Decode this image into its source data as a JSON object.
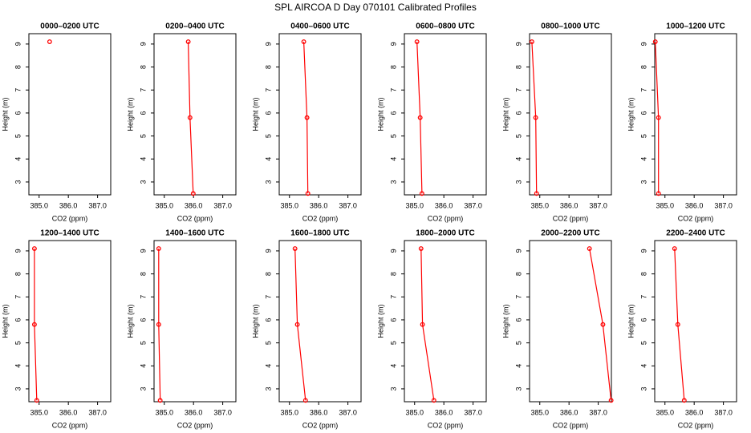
{
  "title": "SPL AIRCOA D  Day 070101  Calibrated Profiles",
  "chart_data": [
    {
      "type": "line",
      "title": "0000–0200 UTC",
      "xlabel": "CO2 (ppm)",
      "ylabel": "Height (m)",
      "color": "#ff0000",
      "xlim": [
        384.65,
        387.45
      ],
      "ylim": [
        2.44,
        9.45
      ],
      "xticks": [
        {
          "value": 385,
          "label": "385.0"
        },
        {
          "value": 386,
          "label": "386.0"
        },
        {
          "value": 387,
          "label": "387.0"
        }
      ],
      "yticks": [
        3,
        4,
        5,
        6,
        7,
        8,
        9
      ],
      "x": [
        385.36
      ],
      "values": [
        9.1
      ]
    },
    {
      "type": "line",
      "title": "0200–0400 UTC",
      "xlabel": "CO2 (ppm)",
      "ylabel": "Height (m)",
      "color": "#ff0000",
      "xlim": [
        384.65,
        387.45
      ],
      "ylim": [
        2.44,
        9.45
      ],
      "xticks": [
        {
          "value": 385,
          "label": "385.0"
        },
        {
          "value": 386,
          "label": "386.0"
        },
        {
          "value": 387,
          "label": "387.0"
        }
      ],
      "yticks": [
        3,
        4,
        5,
        6,
        7,
        8,
        9
      ],
      "x": [
        385.82,
        385.88,
        385.99
      ],
      "values": [
        9.1,
        5.8,
        2.5
      ]
    },
    {
      "type": "line",
      "title": "0400–0600 UTC",
      "xlabel": "CO2 (ppm)",
      "ylabel": "Height (m)",
      "color": "#ff0000",
      "xlim": [
        384.65,
        387.45
      ],
      "ylim": [
        2.44,
        9.45
      ],
      "xticks": [
        {
          "value": 385,
          "label": "385.0"
        },
        {
          "value": 386,
          "label": "386.0"
        },
        {
          "value": 387,
          "label": "387.0"
        }
      ],
      "yticks": [
        3,
        4,
        5,
        6,
        7,
        8,
        9
      ],
      "x": [
        385.49,
        385.6,
        385.63
      ],
      "values": [
        9.1,
        5.8,
        2.5
      ]
    },
    {
      "type": "line",
      "title": "0600–0800 UTC",
      "xlabel": "CO2 (ppm)",
      "ylabel": "Height (m)",
      "color": "#ff0000",
      "xlim": [
        384.65,
        387.45
      ],
      "ylim": [
        2.44,
        9.45
      ],
      "xticks": [
        {
          "value": 385,
          "label": "385.0"
        },
        {
          "value": 386,
          "label": "386.0"
        },
        {
          "value": 387,
          "label": "387.0"
        }
      ],
      "yticks": [
        3,
        4,
        5,
        6,
        7,
        8,
        9
      ],
      "x": [
        385.08,
        385.19,
        385.25
      ],
      "values": [
        9.1,
        5.8,
        2.5
      ]
    },
    {
      "type": "line",
      "title": "0800–1000 UTC",
      "xlabel": "CO2 (ppm)",
      "ylabel": "Height (m)",
      "color": "#ff0000",
      "xlim": [
        384.65,
        387.45
      ],
      "ylim": [
        2.44,
        9.45
      ],
      "xticks": [
        {
          "value": 385,
          "label": "385.0"
        },
        {
          "value": 386,
          "label": "386.0"
        },
        {
          "value": 387,
          "label": "387.0"
        }
      ],
      "yticks": [
        3,
        4,
        5,
        6,
        7,
        8,
        9
      ],
      "x": [
        384.73,
        384.86,
        384.89
      ],
      "values": [
        9.1,
        5.8,
        2.5
      ]
    },
    {
      "type": "line",
      "title": "1000–1200 UTC",
      "xlabel": "CO2 (ppm)",
      "ylabel": "Height (m)",
      "color": "#ff0000",
      "xlim": [
        384.65,
        387.45
      ],
      "ylim": [
        2.44,
        9.45
      ],
      "xticks": [
        {
          "value": 385,
          "label": "385.0"
        },
        {
          "value": 386,
          "label": "386.0"
        },
        {
          "value": 387,
          "label": "387.0"
        }
      ],
      "yticks": [
        3,
        4,
        5,
        6,
        7,
        8,
        9
      ],
      "x": [
        384.67,
        384.78,
        384.78
      ],
      "values": [
        9.1,
        5.8,
        2.5
      ]
    },
    {
      "type": "line",
      "title": "1200–1400 UTC",
      "xlabel": "CO2 (ppm)",
      "ylabel": "Height (m)",
      "color": "#ff0000",
      "xlim": [
        384.65,
        387.45
      ],
      "ylim": [
        2.44,
        9.45
      ],
      "xticks": [
        {
          "value": 385,
          "label": "385.0"
        },
        {
          "value": 386,
          "label": "386.0"
        },
        {
          "value": 387,
          "label": "387.0"
        }
      ],
      "yticks": [
        3,
        4,
        5,
        6,
        7,
        8,
        9
      ],
      "x": [
        384.84,
        384.84,
        384.92
      ],
      "values": [
        9.1,
        5.8,
        2.5
      ]
    },
    {
      "type": "line",
      "title": "1400–1600 UTC",
      "xlabel": "CO2 (ppm)",
      "ylabel": "Height (m)",
      "color": "#ff0000",
      "xlim": [
        384.65,
        387.45
      ],
      "ylim": [
        2.44,
        9.45
      ],
      "xticks": [
        {
          "value": 385,
          "label": "385.0"
        },
        {
          "value": 386,
          "label": "386.0"
        },
        {
          "value": 387,
          "label": "387.0"
        }
      ],
      "yticks": [
        3,
        4,
        5,
        6,
        7,
        8,
        9
      ],
      "x": [
        384.81,
        384.81,
        384.86
      ],
      "values": [
        9.1,
        5.8,
        2.5
      ]
    },
    {
      "type": "line",
      "title": "1600–1800 UTC",
      "xlabel": "CO2 (ppm)",
      "ylabel": "Height (m)",
      "color": "#ff0000",
      "xlim": [
        384.65,
        387.45
      ],
      "ylim": [
        2.44,
        9.45
      ],
      "xticks": [
        {
          "value": 385,
          "label": "385.0"
        },
        {
          "value": 386,
          "label": "386.0"
        },
        {
          "value": 387,
          "label": "387.0"
        }
      ],
      "yticks": [
        3,
        4,
        5,
        6,
        7,
        8,
        9
      ],
      "x": [
        385.19,
        385.27,
        385.55
      ],
      "values": [
        9.1,
        5.8,
        2.5
      ]
    },
    {
      "type": "line",
      "title": "1800–2000 UTC",
      "xlabel": "CO2 (ppm)",
      "ylabel": "Height (m)",
      "color": "#ff0000",
      "xlim": [
        384.65,
        387.45
      ],
      "ylim": [
        2.44,
        9.45
      ],
      "xticks": [
        {
          "value": 385,
          "label": "385.0"
        },
        {
          "value": 386,
          "label": "386.0"
        },
        {
          "value": 387,
          "label": "387.0"
        }
      ],
      "yticks": [
        3,
        4,
        5,
        6,
        7,
        8,
        9
      ],
      "x": [
        385.22,
        385.27,
        385.66
      ],
      "values": [
        9.1,
        5.8,
        2.5
      ]
    },
    {
      "type": "line",
      "title": "2000–2200 UTC",
      "xlabel": "CO2 (ppm)",
      "ylabel": "Height (m)",
      "color": "#ff0000",
      "xlim": [
        384.65,
        387.45
      ],
      "ylim": [
        2.44,
        9.45
      ],
      "xticks": [
        {
          "value": 385,
          "label": "385.0"
        },
        {
          "value": 386,
          "label": "386.0"
        },
        {
          "value": 387,
          "label": "387.0"
        }
      ],
      "yticks": [
        3,
        4,
        5,
        6,
        7,
        8,
        9
      ],
      "x": [
        386.7,
        387.16,
        387.44
      ],
      "values": [
        9.1,
        5.8,
        2.5
      ]
    },
    {
      "type": "line",
      "title": "2200–2400 UTC",
      "xlabel": "CO2 (ppm)",
      "ylabel": "Height (m)",
      "color": "#ff0000",
      "xlim": [
        384.65,
        387.45
      ],
      "ylim": [
        2.44,
        9.45
      ],
      "xticks": [
        {
          "value": 385,
          "label": "385.0"
        },
        {
          "value": 386,
          "label": "386.0"
        },
        {
          "value": 387,
          "label": "387.0"
        }
      ],
      "yticks": [
        3,
        4,
        5,
        6,
        7,
        8,
        9
      ],
      "x": [
        385.33,
        385.44,
        385.66
      ],
      "values": [
        9.1,
        5.8,
        2.5
      ]
    }
  ]
}
